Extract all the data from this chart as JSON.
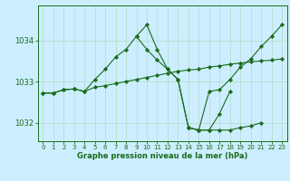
{
  "background_color": "#cceeff",
  "grid_color": "#b8ddd0",
  "line_color": "#1a6b1a",
  "marker_color": "#1a6b1a",
  "xlabel": "Graphe pression niveau de la mer (hPa)",
  "xlim": [
    -0.5,
    23.5
  ],
  "ylim": [
    1031.55,
    1034.85
  ],
  "yticks": [
    1032,
    1033,
    1034
  ],
  "xticks": [
    0,
    1,
    2,
    3,
    4,
    5,
    6,
    7,
    8,
    9,
    10,
    11,
    12,
    13,
    14,
    15,
    16,
    17,
    18,
    19,
    20,
    21,
    22,
    23
  ],
  "series": [
    [
      1032.72,
      1032.72,
      1032.8,
      1032.82,
      1032.76,
      1032.86,
      1032.9,
      1032.95,
      1033.0,
      1033.05,
      1033.1,
      1033.15,
      1033.2,
      1033.25,
      1033.28,
      1033.3,
      1033.35,
      1033.38,
      1033.42,
      1033.45,
      1033.48,
      1033.5,
      1033.52,
      1033.55
    ],
    [
      1032.72,
      1032.72,
      1032.8,
      1032.82,
      1032.76,
      1033.05,
      1033.3,
      1033.6,
      1033.78,
      1034.1,
      1033.78,
      1033.52,
      1033.3,
      1033.05,
      1031.88,
      1031.82,
      1032.76,
      1032.8,
      1033.05,
      1033.35,
      1033.55,
      1033.85,
      1034.1,
      1034.38
    ],
    [
      null,
      null,
      null,
      null,
      null,
      null,
      null,
      null,
      null,
      1034.1,
      1034.38,
      1033.78,
      1033.3,
      1033.05,
      1031.88,
      1031.82,
      1031.82,
      1032.22,
      1032.76,
      null,
      null,
      null,
      null,
      null
    ],
    [
      null,
      null,
      null,
      null,
      null,
      null,
      null,
      null,
      null,
      null,
      null,
      null,
      null,
      null,
      1031.88,
      1031.82,
      1031.82,
      1031.82,
      1031.82,
      1031.88,
      1031.92,
      1032.0,
      null,
      null
    ]
  ]
}
